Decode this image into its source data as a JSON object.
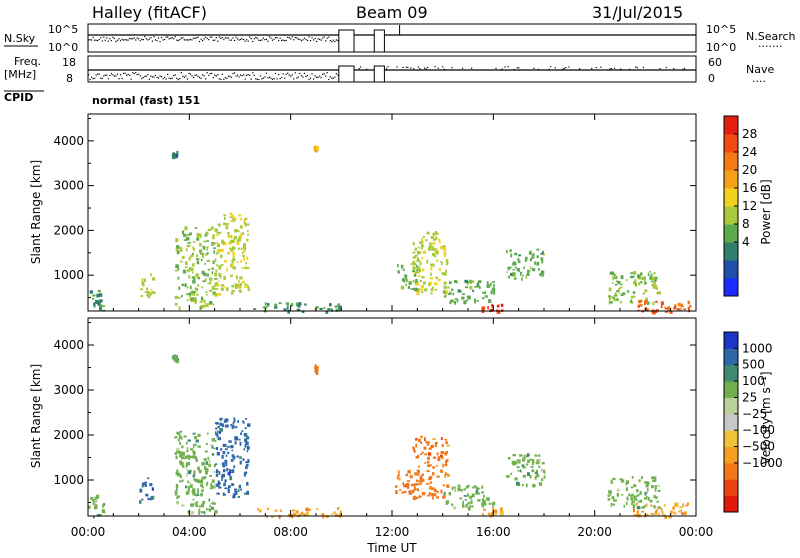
{
  "header": {
    "station": "Halley (fitACF)",
    "beam": "Beam 09",
    "date": "31/Jul/2015"
  },
  "top_panels": {
    "nsky_label": "N.Sky",
    "nsearch_label": "N.Search",
    "nsearch_dots": "·······",
    "left_ticks_noise": [
      "10^5",
      "10^0"
    ],
    "right_ticks_noise": [
      "10^5",
      "10^0"
    ],
    "freq_label": "Freq.",
    "freq_unit": "[MHz]",
    "left_ticks_freq": [
      "18",
      "8"
    ],
    "right_ticks_nave": [
      "60",
      "0"
    ],
    "nave_label": "Nave",
    "nave_dots": "····",
    "cpid_label": "CPID",
    "cpid_value": "normal (fast) 151"
  },
  "colors": {
    "power_scale": [
      "#1a2cff",
      "#1f4fa8",
      "#2e7f6b",
      "#5daa4d",
      "#a8c93a",
      "#f2d21c",
      "#f5a21b",
      "#f47a14",
      "#ef4a12",
      "#e11f0e"
    ],
    "velocity_scale": [
      "#1a35c8",
      "#2f68a8",
      "#3e8a70",
      "#6fb04c",
      "#b9d09a",
      "#c8c8c8",
      "#f0c23a",
      "#f5a021",
      "#f0781a",
      "#e84410",
      "#e01a0a"
    ],
    "gap_color": "#808080"
  },
  "chart_data": [
    {
      "type": "heatmap",
      "name_hint": "power",
      "xlabel": "",
      "ylabel": "Slant Range [km]",
      "xlim": [
        "00:00",
        "24:00"
      ],
      "ylim": [
        200,
        4600
      ],
      "yticks": [
        "1000",
        "2000",
        "3000",
        "4000"
      ],
      "colorbar": {
        "label": "Power [dB]",
        "ticks": [
          "4",
          "8",
          "12",
          "16",
          "20",
          "24",
          "28"
        ]
      },
      "clusters": [
        {
          "t0": 0.0,
          "t1": 0.6,
          "r0": 200,
          "r1": 700,
          "v": 8
        },
        {
          "t0": 2.0,
          "t1": 2.6,
          "r0": 550,
          "r1": 1100,
          "v": 14
        },
        {
          "t0": 3.3,
          "t1": 3.5,
          "r0": 3650,
          "r1": 3800,
          "v": 6
        },
        {
          "t0": 3.4,
          "t1": 5.0,
          "r0": 300,
          "r1": 2100,
          "v": 12
        },
        {
          "t0": 5.0,
          "t1": 6.3,
          "r0": 600,
          "r1": 2400,
          "v": 14
        },
        {
          "t0": 6.5,
          "t1": 10.0,
          "r0": 200,
          "r1": 400,
          "v": 8
        },
        {
          "t0": 8.9,
          "t1": 9.0,
          "r0": 3800,
          "r1": 3900,
          "v": 20
        },
        {
          "t0": 12.1,
          "t1": 13.0,
          "r0": 700,
          "r1": 1300,
          "v": 10
        },
        {
          "t0": 12.8,
          "t1": 14.2,
          "r0": 600,
          "r1": 2000,
          "v": 14
        },
        {
          "t0": 14.0,
          "t1": 16.0,
          "r0": 400,
          "r1": 900,
          "v": 10
        },
        {
          "t0": 15.5,
          "t1": 16.3,
          "r0": 200,
          "r1": 400,
          "v": 28
        },
        {
          "t0": 16.5,
          "t1": 18.0,
          "r0": 900,
          "r1": 1600,
          "v": 10
        },
        {
          "t0": 20.5,
          "t1": 22.5,
          "r0": 400,
          "r1": 1100,
          "v": 12
        },
        {
          "t0": 21.5,
          "t1": 23.8,
          "r0": 200,
          "r1": 500,
          "v": 26
        }
      ]
    },
    {
      "type": "heatmap",
      "name_hint": "velocity",
      "xlabel": "Time UT",
      "ylabel": "Slant Range [km]",
      "xlim": [
        "00:00",
        "24:00"
      ],
      "ylim": [
        200,
        4600
      ],
      "xticks": [
        "00:00",
        "04:00",
        "08:00",
        "12:00",
        "16:00",
        "20:00",
        "00:00"
      ],
      "yticks": [
        "1000",
        "2000",
        "3000",
        "4000"
      ],
      "colorbar": {
        "label": "Velocity [m s⁻¹]",
        "ticks": [
          "1000",
          "500",
          "100",
          "25",
          "−25",
          "−100",
          "−500",
          "−1000"
        ]
      },
      "clusters": [
        {
          "t0": 0.0,
          "t1": 0.6,
          "r0": 200,
          "r1": 700,
          "v": 100
        },
        {
          "t0": 2.0,
          "t1": 2.6,
          "r0": 550,
          "r1": 1100,
          "v": 500
        },
        {
          "t0": 3.3,
          "t1": 3.5,
          "r0": 3650,
          "r1": 3800,
          "v": 100
        },
        {
          "t0": 3.4,
          "t1": 5.0,
          "r0": 300,
          "r1": 2100,
          "v": 100
        },
        {
          "t0": 5.0,
          "t1": 6.3,
          "r0": 600,
          "r1": 2400,
          "v": 500
        },
        {
          "t0": 6.5,
          "t1": 10.0,
          "r0": 200,
          "r1": 400,
          "v": -100
        },
        {
          "t0": 8.9,
          "t1": 9.0,
          "r0": 3400,
          "r1": 3600,
          "v": -500
        },
        {
          "t0": 12.1,
          "t1": 13.0,
          "r0": 700,
          "r1": 1300,
          "v": -500
        },
        {
          "t0": 12.8,
          "t1": 14.2,
          "r0": 600,
          "r1": 2000,
          "v": -500
        },
        {
          "t0": 14.0,
          "t1": 16.0,
          "r0": 400,
          "r1": 900,
          "v": 100
        },
        {
          "t0": 15.5,
          "t1": 16.3,
          "r0": 200,
          "r1": 400,
          "v": -100
        },
        {
          "t0": 16.5,
          "t1": 18.0,
          "r0": 900,
          "r1": 1600,
          "v": 100
        },
        {
          "t0": 20.5,
          "t1": 22.5,
          "r0": 400,
          "r1": 1100,
          "v": 100
        },
        {
          "t0": 21.5,
          "t1": 23.8,
          "r0": 200,
          "r1": 500,
          "v": -100
        }
      ]
    }
  ]
}
